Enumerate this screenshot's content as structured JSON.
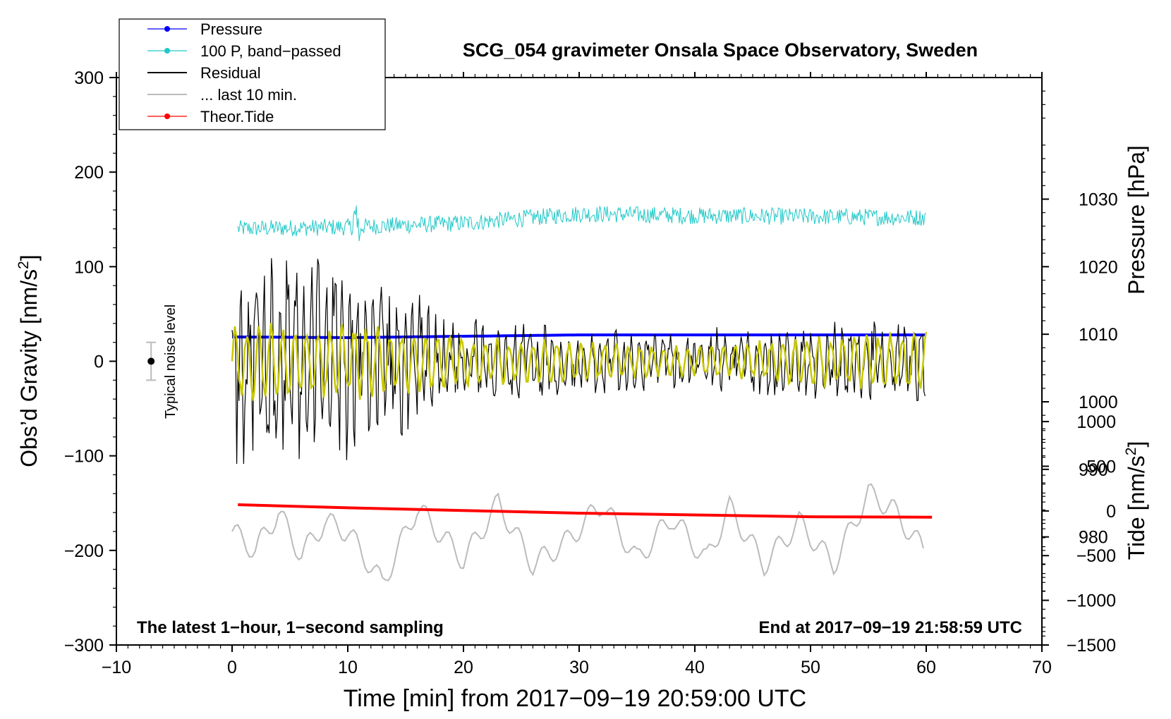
{
  "chart_data": {
    "type": "line",
    "title": "SCG_054 gravimeter Onsala Space Observatory, Sweden",
    "xlabel": "Time [min] from 2017−09−19 20:59:00 UTC",
    "ylabel_left": "Obs’d Gravity [nm/s",
    "ylabel_left_sup": "2",
    "ylabel_left_close": "]",
    "ylabel_right_pressure": "Pressure [hPa]",
    "ylabel_right_tide": "Tide [nm/s",
    "ylabel_right_tide_sup": "2",
    "ylabel_right_tide_close": "]",
    "xlim": [
      -10,
      70
    ],
    "ylim_left": [
      -300,
      300
    ],
    "x_ticks": [
      -10,
      0,
      10,
      20,
      30,
      40,
      50,
      60,
      70
    ],
    "x_tick_labels": [
      "−10",
      "0",
      "10",
      "20",
      "30",
      "40",
      "50",
      "60",
      "70"
    ],
    "y_left_ticks": [
      300,
      200,
      100,
      0,
      -100,
      -200,
      -300
    ],
    "y_left_tick_labels": [
      "300",
      "200",
      "100",
      "0",
      "−100",
      "−200",
      "−300"
    ],
    "pressure_axis": {
      "range_hPa": [
        964,
        1048
      ],
      "ticks": [
        1030,
        1020,
        1010,
        1000,
        990,
        980
      ],
      "tick_labels": [
        "1030",
        "1020",
        "1010",
        "1000",
        "990",
        "980"
      ]
    },
    "tide_axis": {
      "range": [
        -1500,
        4850
      ],
      "ticks": [
        1000,
        500,
        0,
        -500,
        -1000,
        -1500
      ],
      "tick_labels": [
        "1000",
        "500",
        "0",
        "−500",
        "−1000",
        "−1500"
      ]
    },
    "annotation_left": "The latest 1−hour, 1−second sampling",
    "annotation_right": "End at 2017−09−19 21:58:59 UTC",
    "noise_label": "Typical noise level",
    "noise_bar": {
      "x": -7,
      "center": 0,
      "half_range": 20
    },
    "legend": [
      {
        "label": "Pressure",
        "color": "#0000ff",
        "marker": true
      },
      {
        "label": "100 P, band−passed",
        "color": "#20c8c8",
        "marker": true
      },
      {
        "label": "Residual",
        "color": "#000000",
        "marker": false
      },
      {
        "label": "... last 10 min.",
        "color": "#bbbbbb",
        "marker": false
      },
      {
        "label": "Theor.Tide",
        "color": "#ff0000",
        "marker": true
      }
    ],
    "series": [
      {
        "name": "Pressure",
        "color": "#0000ff",
        "x": [
          0,
          10,
          20,
          30,
          40,
          50,
          60
        ],
        "values": [
          1009.6,
          1009.5,
          1009.7,
          1009.9,
          1009.9,
          1009.9,
          1009.9
        ],
        "units": "hPa"
      },
      {
        "name": "100 P, band-passed",
        "color": "#20c8c8",
        "x": [
          0,
          10,
          20,
          30,
          40,
          50,
          60
        ],
        "values": [
          140,
          142,
          146,
          156,
          154,
          153,
          152
        ],
        "units": "nm/s2"
      },
      {
        "name": "Residual",
        "color": "#000000",
        "x": [
          0,
          10,
          20,
          30,
          40,
          50,
          60
        ],
        "values": [
          0,
          0,
          0,
          0,
          0,
          0,
          0
        ],
        "envelope": [
          [
            0,
            100
          ],
          [
            10,
            90
          ],
          [
            20,
            45
          ],
          [
            30,
            30
          ],
          [
            40,
            30
          ],
          [
            50,
            35
          ],
          [
            60,
            40
          ]
        ],
        "units": "nm/s2"
      },
      {
        "name": "Residual (smoothed)",
        "color": "#c8c800",
        "x": [
          0,
          10,
          20,
          30,
          40,
          50,
          60
        ],
        "values": [
          0,
          0,
          0,
          0,
          0,
          0,
          0
        ],
        "envelope": [
          [
            0,
            40
          ],
          [
            10,
            40
          ],
          [
            20,
            25
          ],
          [
            30,
            20
          ],
          [
            40,
            15
          ],
          [
            50,
            25
          ],
          [
            60,
            30
          ]
        ],
        "units": "nm/s2"
      },
      {
        "name": "... last 10 min.",
        "color": "#bbbbbb",
        "x": [
          0,
          2,
          4,
          6,
          8,
          10,
          13,
          16,
          20,
          23,
          26,
          29,
          32,
          35,
          38,
          41,
          43,
          46,
          49,
          52,
          55,
          57,
          59.8
        ],
        "values": [
          -180,
          -200,
          -160,
          -205,
          -170,
          -180,
          -235,
          -155,
          -210,
          -150,
          -215,
          -190,
          -150,
          -210,
          -165,
          -210,
          -155,
          -215,
          -170,
          -215,
          -140,
          -155,
          -200
        ],
        "units": "nm/s2"
      },
      {
        "name": "Theor.Tide",
        "color": "#ff0000",
        "x": [
          0.5,
          10,
          20,
          30,
          40,
          50,
          60.5
        ],
        "values": [
          70,
          35,
          5,
          -25,
          -45,
          -65,
          -70
        ],
        "units": "nm/s2"
      }
    ]
  }
}
